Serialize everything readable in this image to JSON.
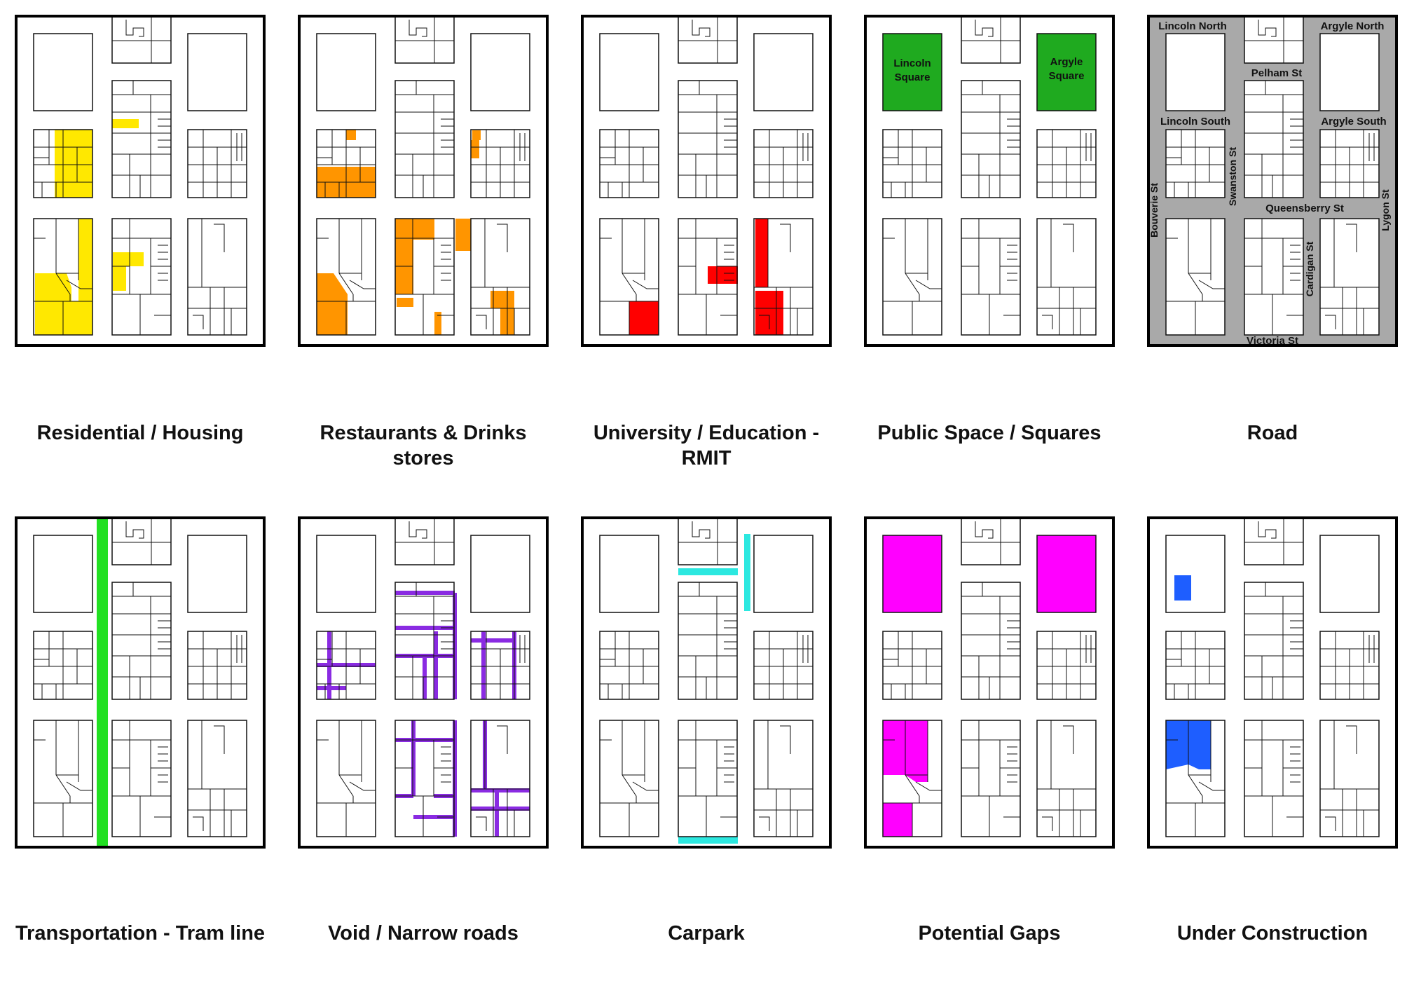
{
  "panels": [
    {
      "id": "residential",
      "caption": "Residential / Housing",
      "color": "#FFE800"
    },
    {
      "id": "restaurants",
      "caption": "Restaurants & Drinks stores",
      "color": "#FF9500"
    },
    {
      "id": "university",
      "caption": "University / Education - RMIT",
      "color": "#FF0000"
    },
    {
      "id": "public-space",
      "caption": "Public Space / Squares",
      "color": "#1FAA1F",
      "labels": {
        "lincoln": "Lincoln Square",
        "argyle": "Argyle Square"
      }
    },
    {
      "id": "road",
      "caption": "Road",
      "color": "#A9A9A9",
      "labels": {
        "lincoln_north": "Lincoln North",
        "argyle_north": "Argyle North",
        "pelham": "Pelham St",
        "lincoln_south": "Lincoln South",
        "argyle_south": "Argyle South",
        "swanston": "Swanston St",
        "bouverie": "Bouverie St",
        "queensberry": "Queensberry St",
        "lygon": "Lygon St",
        "cardigan": "Cardigan St",
        "victoria": "Victoria St"
      }
    },
    {
      "id": "tram",
      "caption": "Transportation - Tram line",
      "color": "#22E022"
    },
    {
      "id": "void",
      "caption": "Void / Narrow roads",
      "color": "#8A2BE2"
    },
    {
      "id": "carpark",
      "caption": "Carpark",
      "color": "#2CE8E0"
    },
    {
      "id": "gaps",
      "caption": "Potential Gaps",
      "color": "#FF00FF"
    },
    {
      "id": "construction",
      "caption": "Under Construction",
      "color": "#1E5EFF"
    }
  ]
}
